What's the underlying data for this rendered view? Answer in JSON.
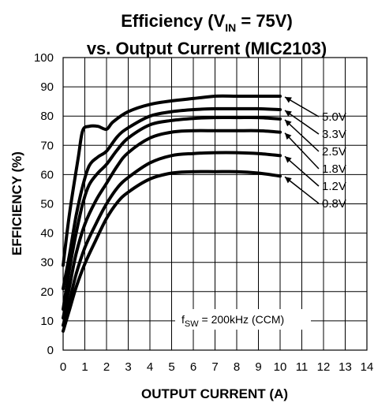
{
  "chart_data": {
    "type": "line",
    "title_line1_main": "Efficiency (V",
    "title_line1_sub": "IN",
    "title_line1_end": " = 75V)",
    "title_line2": "vs. Output Current (MIC2103)",
    "xlabel": "OUTPUT CURRENT (A)",
    "ylabel": "EFFICIENCY (%)",
    "xlim": [
      0,
      14
    ],
    "ylim": [
      0,
      100
    ],
    "xticks": [
      "0",
      "1",
      "2",
      "3",
      "4",
      "5",
      "6",
      "7",
      "8",
      "9",
      "10",
      "11",
      "12",
      "13",
      "14"
    ],
    "yticks": [
      "0",
      "10",
      "20",
      "30",
      "40",
      "50",
      "60",
      "70",
      "80",
      "90",
      "100"
    ],
    "grid": true,
    "annotation": {
      "prefix": "f",
      "sub": "SW",
      "text": " = 200kHz (CCM)"
    },
    "series": [
      {
        "name": "5.0V",
        "x": [
          0,
          0.3,
          0.7,
          0.9,
          1.2,
          1.6,
          2.0,
          2.3,
          3.0,
          4.0,
          5.0,
          6.0,
          7.0,
          8.0,
          9.0,
          10.0
        ],
        "y": [
          29,
          47,
          66,
          75,
          76.5,
          76.5,
          75.5,
          78,
          81.5,
          84,
          85.2,
          86,
          86.8,
          86.8,
          86.8,
          86.8
        ]
      },
      {
        "name": "3.3V",
        "x": [
          0,
          0.3,
          0.6,
          0.9,
          1.2,
          1.6,
          2.0,
          2.5,
          3.0,
          4.0,
          5.0,
          6.0,
          7.0,
          8.0,
          9.0,
          10.0
        ],
        "y": [
          21,
          33,
          46,
          56,
          63,
          66,
          68,
          73,
          76,
          80,
          81.5,
          82.2,
          82.5,
          82.5,
          82.5,
          82.2
        ]
      },
      {
        "name": "2.5V",
        "x": [
          0,
          0.3,
          0.6,
          0.9,
          1.2,
          1.6,
          2.0,
          2.5,
          3.0,
          4.0,
          5.0,
          6.0,
          7.0,
          8.0,
          9.0,
          10.0
        ],
        "y": [
          14,
          28,
          40,
          50,
          56.5,
          60.5,
          63.5,
          68.5,
          72.5,
          77,
          78.5,
          79.2,
          79.5,
          79.5,
          79.5,
          79
        ]
      },
      {
        "name": "1.8V",
        "x": [
          0,
          0.3,
          0.6,
          1.0,
          1.5,
          2.0,
          2.5,
          3.0,
          4.0,
          5.0,
          6.0,
          7.0,
          8.0,
          9.0,
          10.0
        ],
        "y": [
          11,
          22,
          33,
          43,
          51,
          57,
          63,
          67.5,
          72.5,
          74.5,
          75,
          75,
          75,
          75,
          74.5
        ]
      },
      {
        "name": "1.2V",
        "x": [
          0,
          0.3,
          0.6,
          1.0,
          1.5,
          2.0,
          2.5,
          3.0,
          4.0,
          5.0,
          6.0,
          7.0,
          8.0,
          9.0,
          10.0
        ],
        "y": [
          8.5,
          17,
          26,
          35,
          43,
          50,
          55.5,
          59,
          64,
          66.5,
          67.2,
          67.5,
          67.5,
          67.2,
          66.5
        ]
      },
      {
        "name": "0.8V",
        "x": [
          0,
          0.3,
          0.6,
          1.0,
          1.5,
          2.0,
          2.5,
          3.0,
          4.0,
          5.0,
          6.0,
          7.0,
          8.0,
          9.0,
          10.0
        ],
        "y": [
          6.5,
          14,
          21.5,
          29.5,
          37.5,
          45,
          50.5,
          54,
          58.5,
          60.5,
          61,
          61,
          61,
          60.5,
          59.5
        ]
      }
    ]
  }
}
